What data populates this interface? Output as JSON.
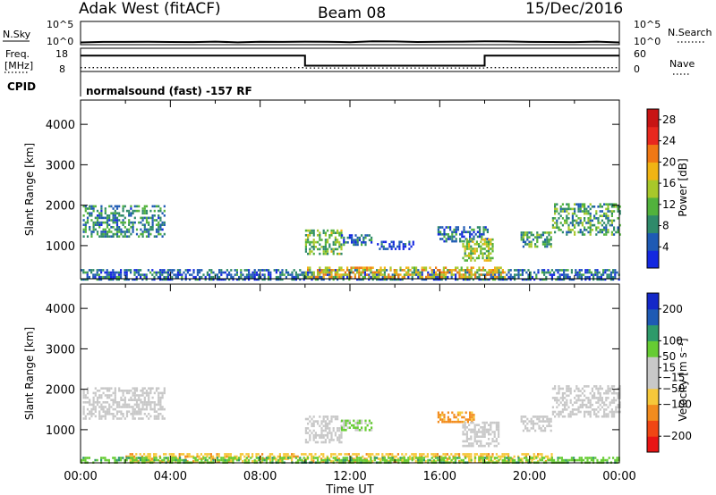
{
  "header": {
    "radar_name": "Adak West (fitACF)",
    "beam": "Beam 08",
    "date": "15/Dec/2016"
  },
  "params": {
    "nsky_label": "N.Sky",
    "nsky_tick_top": "10^5",
    "nsky_tick_bottom": "10^0",
    "nsearch_label": "N.Search",
    "nsearch_tick_top": "10^5",
    "nsearch_tick_bottom": "10^0",
    "freq_label_line1": "Freq.",
    "freq_label_line2": "[MHz]",
    "freq_tick_top": "18",
    "freq_tick_bottom": "8",
    "nave_label": "Nave",
    "nave_tick_top": "60",
    "nave_tick_bottom": "0",
    "cpid_label": "CPID",
    "cpid_text": "normalsound (fast) -157 RF"
  },
  "colors": {
    "power_scale": [
      "#1428e0",
      "#1e5ab4",
      "#2f8a6a",
      "#52b23c",
      "#a8c82a",
      "#f0b414",
      "#f07814",
      "#e8281e",
      "#c81414"
    ],
    "velocity_scale": [
      "#e81414",
      "#f04614",
      "#f28c1e",
      "#f6c83a",
      "#c8c8c8",
      "#c8c8c8",
      "#66cc33",
      "#2e9a6a",
      "#1e5ab4",
      "#1428c8"
    ],
    "gray_scatter": "#c8c8c8"
  },
  "chart_data": [
    {
      "type": "line",
      "name": "nsky-nsearch-panel",
      "ylabel": "N.Sky",
      "y2label": "N.Search",
      "yscale": "log",
      "ylim": [
        1,
        100000
      ],
      "xlim": [
        0,
        24
      ],
      "series": [
        {
          "x": [
            0,
            1,
            2,
            3,
            4,
            5,
            6,
            7,
            8,
            9,
            10,
            11,
            12,
            13,
            14,
            15,
            16,
            17,
            18,
            19,
            20,
            21,
            22,
            23,
            24
          ],
          "values": [
            3.8,
            3.9,
            4.0,
            4.0,
            3.9,
            3.9,
            4.0,
            4.0,
            4.0,
            3.9,
            4.0,
            4.0,
            4.1,
            4.2,
            4.6,
            4.0,
            3.9,
            3.9,
            4.0,
            4.0,
            3.9,
            4.0,
            3.9,
            3.8,
            3.8
          ]
        }
      ]
    },
    {
      "type": "line",
      "name": "freq-nave-panel",
      "ylabel": "Freq. [MHz]",
      "y2label": "Nave",
      "ylim": [
        8,
        18
      ],
      "y2lim": [
        0,
        60
      ],
      "xlim": [
        0,
        24
      ],
      "series": [
        {
          "x": [
            0,
            10,
            10,
            18,
            18,
            24
          ],
          "values": [
            14.8,
            14.8,
            10.5,
            10.5,
            14.8,
            14.8
          ]
        },
        {
          "x": [
            0,
            10,
            10,
            18,
            18,
            24
          ],
          "values": [
            10,
            10,
            9,
            9,
            10,
            10
          ]
        }
      ]
    },
    {
      "type": "heatmap",
      "name": "power-panel",
      "xlabel": "Time UT",
      "ylabel": "Slant Range [km]",
      "x_ticks": [
        "00:00",
        "04:00",
        "08:00",
        "12:00",
        "16:00",
        "20:00",
        "00:00"
      ],
      "xlim": [
        0,
        24
      ],
      "y_ticks": [
        1000,
        2000,
        3000,
        4000
      ],
      "ylim": [
        180,
        4600
      ],
      "colorbar_label": "Power [dB]",
      "colorbar_ticks": [
        4,
        8,
        12,
        16,
        20,
        24,
        28
      ],
      "colorbar_range": [
        0,
        30
      ],
      "regions": [
        {
          "t0": 0.1,
          "t1": 3.7,
          "r0": 1250,
          "r1": 2000,
          "level": 8
        },
        {
          "t0": 10.0,
          "t1": 11.6,
          "r0": 800,
          "r1": 1400,
          "level": 12
        },
        {
          "t0": 11.6,
          "t1": 13.0,
          "r0": 1000,
          "r1": 1280,
          "level": 6
        },
        {
          "t0": 13.2,
          "t1": 14.8,
          "r0": 920,
          "r1": 1120,
          "level": 3
        },
        {
          "t0": 15.9,
          "t1": 18.1,
          "r0": 1080,
          "r1": 1480,
          "level": 6
        },
        {
          "t0": 17.0,
          "t1": 18.4,
          "r0": 620,
          "r1": 1180,
          "level": 14
        },
        {
          "t0": 19.6,
          "t1": 21.0,
          "r0": 960,
          "r1": 1350,
          "level": 10
        },
        {
          "t0": 21.0,
          "t1": 24.0,
          "r0": 1300,
          "r1": 2050,
          "level": 10
        },
        {
          "t0": 0.0,
          "t1": 24.0,
          "r0": 180,
          "r1": 420,
          "level": 6
        },
        {
          "t0": 10.0,
          "t1": 19.0,
          "r0": 200,
          "r1": 480,
          "level": 18
        }
      ]
    },
    {
      "type": "heatmap",
      "name": "velocity-panel",
      "xlabel": "Time UT",
      "ylabel": "Slant Range [km]",
      "x_ticks": [
        "00:00",
        "04:00",
        "08:00",
        "12:00",
        "16:00",
        "20:00",
        "00:00"
      ],
      "xlim": [
        0,
        24
      ],
      "y_ticks": [
        1000,
        2000,
        3000,
        4000
      ],
      "ylim": [
        180,
        4600
      ],
      "colorbar_label": "Velocity [m s⁻¹]",
      "colorbar_ticks": [
        -200,
        -100,
        -50,
        -15,
        15,
        50,
        100,
        200
      ],
      "colorbar_range": [
        -250,
        250
      ],
      "regions": [
        {
          "t0": 0.1,
          "t1": 3.7,
          "r0": 1250,
          "r1": 2050,
          "level": 0
        },
        {
          "t0": 10.0,
          "t1": 11.6,
          "r0": 700,
          "r1": 1350,
          "level": 0
        },
        {
          "t0": 11.6,
          "t1": 13.0,
          "r0": 980,
          "r1": 1250,
          "level": 20
        },
        {
          "t0": 15.9,
          "t1": 17.5,
          "r0": 1200,
          "r1": 1450,
          "level": -60
        },
        {
          "t0": 17.0,
          "t1": 18.6,
          "r0": 600,
          "r1": 1200,
          "level": 0
        },
        {
          "t0": 19.6,
          "t1": 21.0,
          "r0": 950,
          "r1": 1350,
          "level": 0
        },
        {
          "t0": 21.0,
          "t1": 24.0,
          "r0": 1300,
          "r1": 2100,
          "level": 0
        },
        {
          "t0": 2.0,
          "t1": 21.0,
          "r0": 220,
          "r1": 420,
          "level": -40
        },
        {
          "t0": 0.0,
          "t1": 24.0,
          "r0": 180,
          "r1": 330,
          "level": 40
        }
      ]
    }
  ]
}
